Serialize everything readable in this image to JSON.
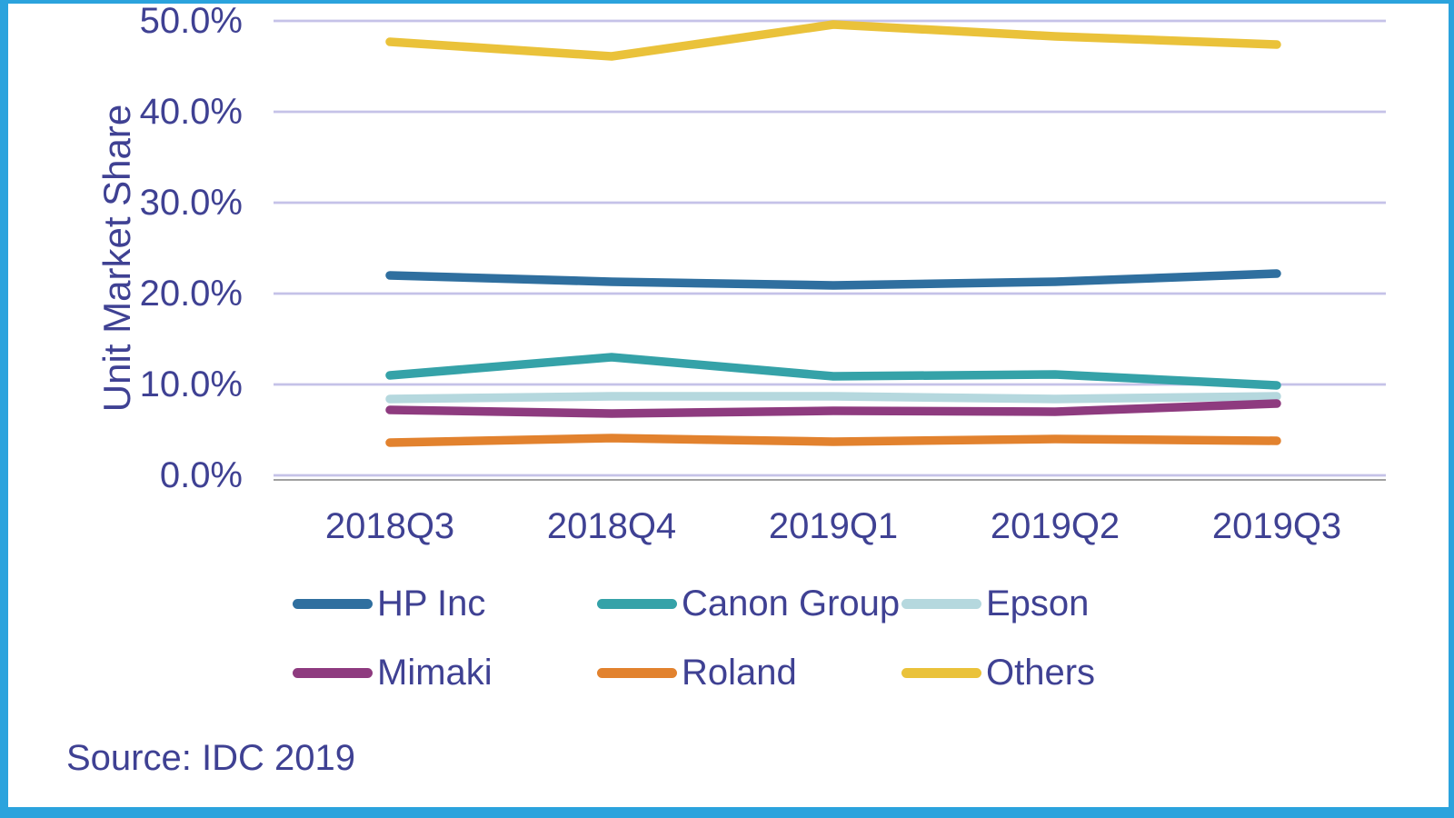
{
  "chart_data": {
    "type": "line",
    "title": "",
    "ylabel": "Unit Market Share",
    "xlabel": "",
    "categories": [
      "2018Q3",
      "2018Q4",
      "2019Q1",
      "2019Q2",
      "2019Q3"
    ],
    "series": [
      {
        "name": "HP Inc",
        "color": "#2f6f9f",
        "values": [
          22.0,
          21.3,
          20.9,
          21.3,
          22.2
        ]
      },
      {
        "name": "Canon Group",
        "color": "#35a2a8",
        "values": [
          11.0,
          13.0,
          10.9,
          11.1,
          9.9
        ]
      },
      {
        "name": "Epson",
        "color": "#b5d8de",
        "values": [
          8.4,
          8.7,
          8.7,
          8.4,
          8.7
        ]
      },
      {
        "name": "Mimaki",
        "color": "#8e3b7f",
        "values": [
          7.2,
          6.8,
          7.1,
          7.0,
          7.9
        ]
      },
      {
        "name": "Roland",
        "color": "#e2822e",
        "values": [
          3.6,
          4.1,
          3.7,
          4.0,
          3.8
        ]
      },
      {
        "name": "Others",
        "color": "#eac23a",
        "values": [
          47.7,
          46.1,
          49.6,
          48.3,
          47.4
        ]
      }
    ],
    "ylim": [
      0,
      50
    ],
    "ytick_labels": [
      "0.0%",
      "10.0%",
      "20.0%",
      "30.0%",
      "40.0%",
      "50.0%"
    ],
    "grid": true,
    "legend_position": "bottom"
  },
  "source_note": "Source: IDC 2019",
  "styles": {
    "background": "#ffffff",
    "frame_color": "#2ba3dd",
    "grid_color": "#c5c2e8",
    "axis_color": "#a0a0a0",
    "text_color": "#3f4193"
  }
}
